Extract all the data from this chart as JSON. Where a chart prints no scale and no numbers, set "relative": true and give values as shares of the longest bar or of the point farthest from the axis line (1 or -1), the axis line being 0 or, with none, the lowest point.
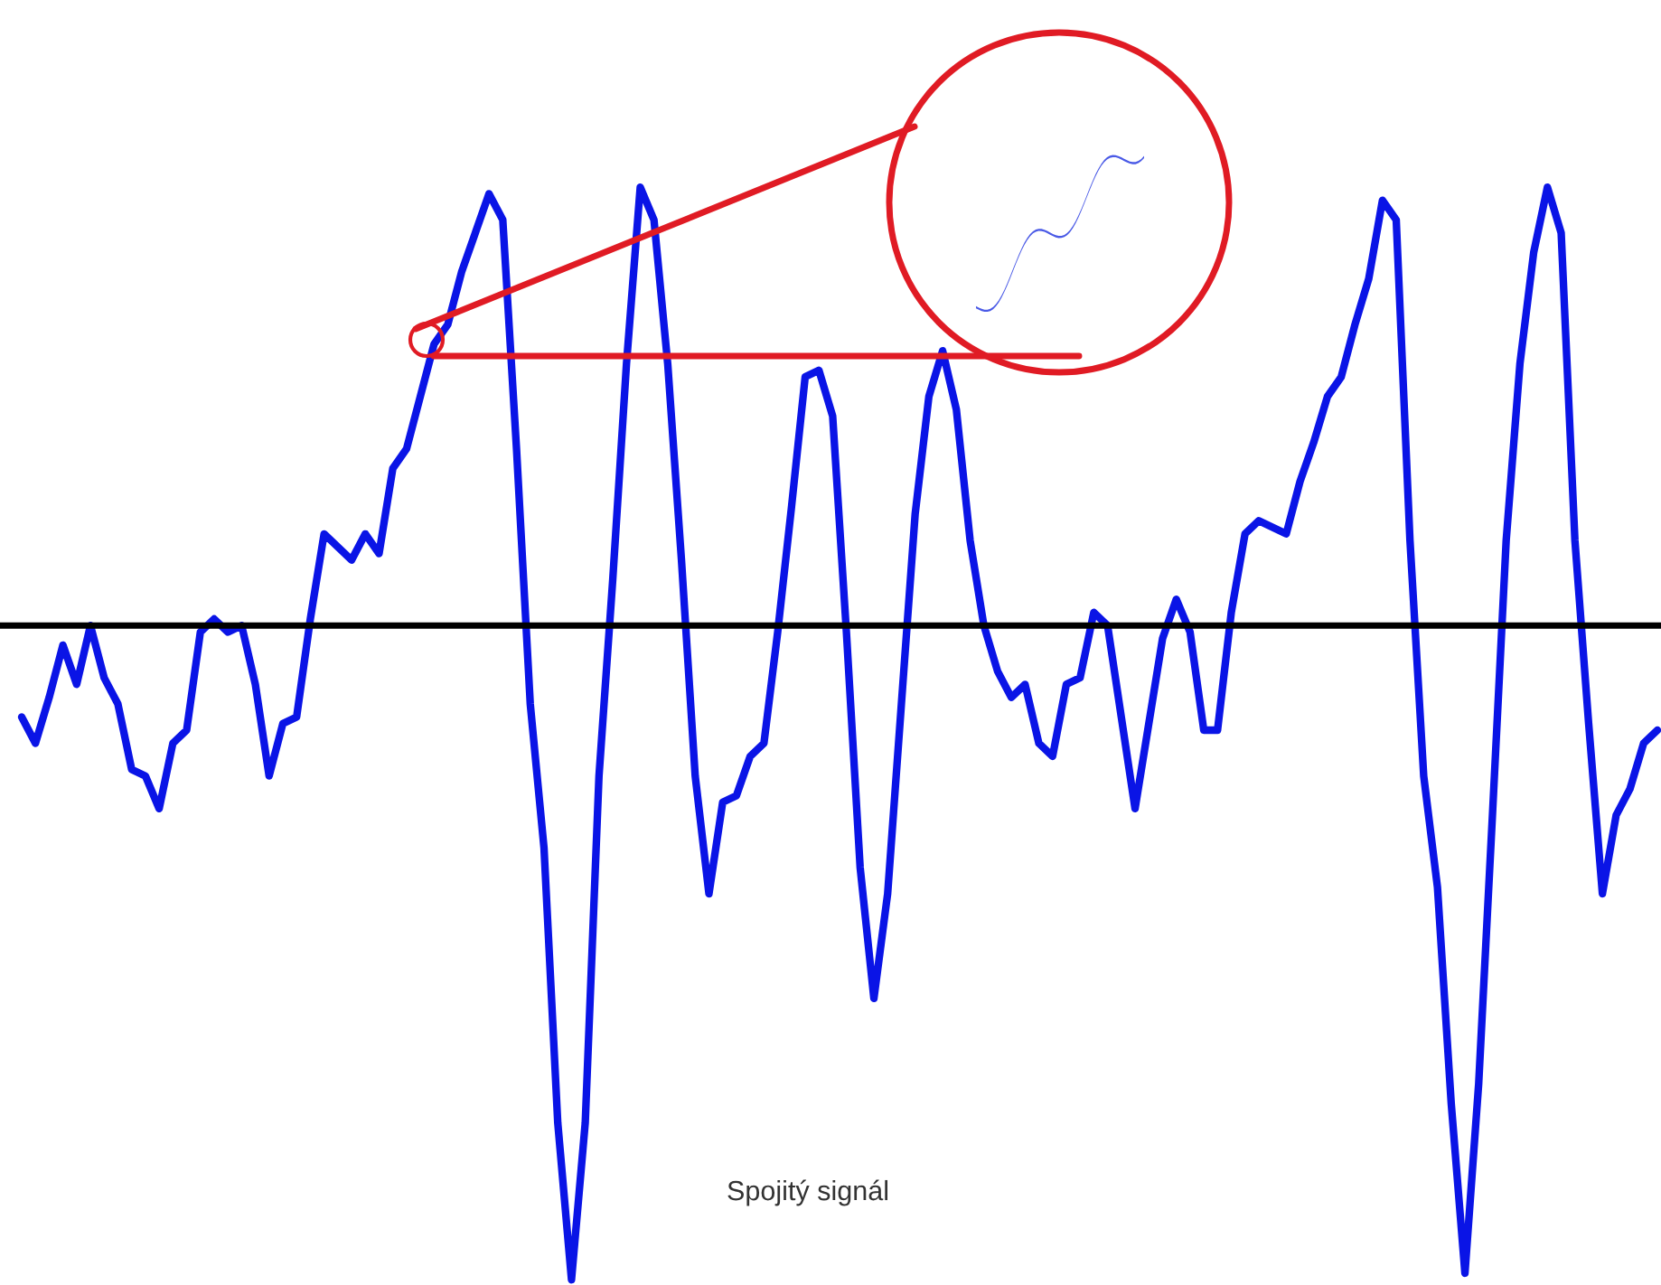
{
  "chart_data": {
    "type": "line",
    "relative": true,
    "line_style": "solid",
    "categories": [
      null,
      null,
      null,
      null,
      null,
      null,
      null,
      null,
      null,
      null,
      null,
      null,
      null,
      null,
      null,
      null,
      null,
      null,
      null,
      null,
      null,
      null,
      null,
      null,
      null,
      null,
      null,
      null,
      null,
      null,
      null,
      null,
      null,
      null,
      null,
      null,
      null,
      null,
      null,
      null,
      null,
      null,
      null,
      null,
      null,
      null,
      null,
      null,
      null,
      null,
      null,
      null,
      null,
      null,
      null,
      null,
      null,
      null,
      null,
      null,
      null,
      null,
      null,
      null,
      null,
      null,
      null,
      null,
      null,
      null,
      null,
      null,
      null,
      null,
      null,
      null,
      null,
      null,
      null,
      null,
      null,
      null,
      null,
      null,
      null,
      null,
      null,
      null,
      null,
      null,
      null,
      null,
      null,
      null,
      null,
      null,
      null,
      null,
      null,
      null,
      null,
      null,
      null,
      null,
      null,
      null,
      null,
      null,
      null,
      null,
      null,
      null,
      null,
      null,
      null,
      null,
      null,
      null,
      null,
      null
    ],
    "annotations": [
      "Spojitý signál"
    ],
    "series": [
      {
        "color": "#0a14e6",
        "values": [
          -0.14,
          -0.18,
          -0.11,
          -0.03,
          -0.09,
          0,
          -0.08,
          -0.12,
          -0.22,
          -0.23,
          -0.28,
          -0.18,
          -0.16,
          -0.01,
          0.01,
          -0.01,
          0,
          -0.09,
          -0.23,
          -0.15,
          -0.14,
          0.01,
          0.14,
          0.12,
          0.1,
          0.14,
          0.11,
          0.24,
          0.27,
          0.35,
          0.43,
          0.46,
          0.54,
          0.6,
          0.66,
          0.62,
          0.27,
          -0.12,
          -0.34,
          -0.76,
          -1,
          -0.76,
          -0.23,
          0.07,
          0.4,
          0.67,
          0.62,
          0.4,
          0.1,
          -0.23,
          -0.41,
          -0.27,
          -0.26,
          -0.2,
          -0.18,
          -0.01,
          0.18,
          0.38,
          0.39,
          0.32,
          -0.01,
          -0.37,
          -0.57,
          -0.41,
          -0.12,
          0.17,
          0.35,
          0.42,
          0.33,
          0.13,
          0,
          -0.07,
          -0.11,
          -0.09,
          -0.18,
          -0.2,
          -0.09,
          -0.08,
          0.02,
          0,
          -0.14,
          -0.28,
          -0.15,
          -0.02,
          0.04,
          -0.01,
          -0.16,
          -0.16,
          0.02,
          0.14,
          0.16,
          0.15,
          0.14,
          0.22,
          0.28,
          0.35,
          0.38,
          0.46,
          0.53,
          0.65,
          0.62,
          0.13,
          -0.23,
          -0.4,
          -0.73,
          -0.99,
          -0.7,
          -0.29,
          0.13,
          0.4,
          0.57,
          0.67,
          0.6,
          0.13,
          -0.15,
          -0.41,
          -0.29,
          -0.25,
          -0.18,
          -0.16
        ]
      }
    ]
  }
}
